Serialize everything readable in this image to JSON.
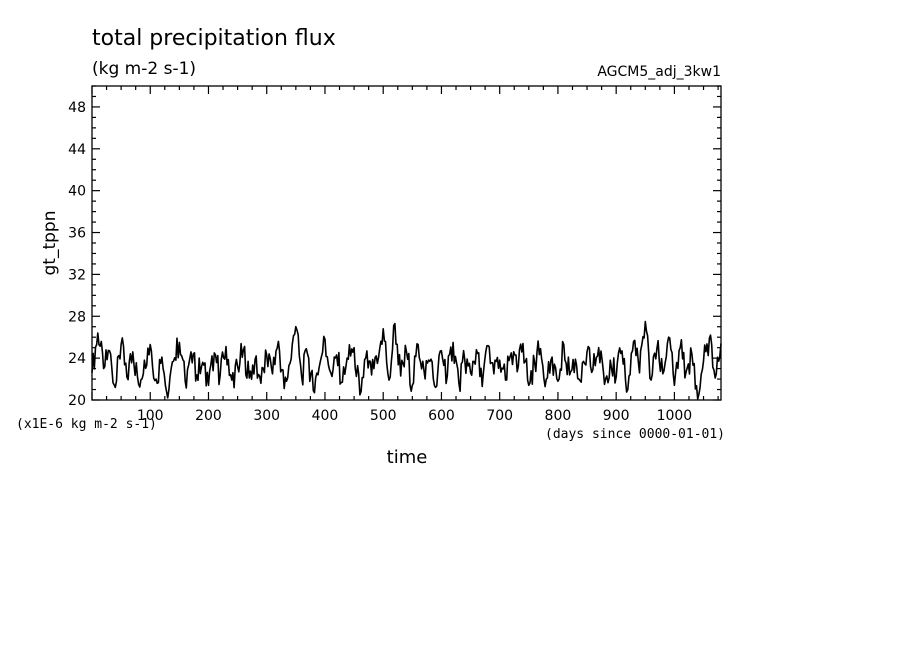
{
  "chart_data": {
    "type": "line",
    "title": "total precipitation flux",
    "subtitle": "(kg m-2 s-1)",
    "run_label": "AGCM5_adj_3kw1",
    "ylabel": "gt_tppn",
    "xlabel": "time",
    "y_unit_note": "(x1E-6 kg m-2 s-1)",
    "x_unit_note": "(days since 0000-01-01)",
    "xlim": [
      0,
      1080
    ],
    "ylim": [
      20,
      50
    ],
    "x_ticks": [
      100,
      200,
      300,
      400,
      500,
      600,
      700,
      800,
      900,
      1000
    ],
    "y_ticks": [
      20,
      24,
      28,
      32,
      36,
      40,
      44,
      48
    ],
    "grid": false,
    "line_color": "#000000",
    "series": [
      {
        "x": [
          0,
          10,
          20,
          30,
          40,
          50,
          60,
          70,
          80,
          90,
          100,
          110,
          120,
          130,
          140,
          150,
          160,
          170,
          180,
          190,
          200,
          210,
          220,
          230,
          240,
          250,
          260,
          270,
          280,
          290,
          300,
          310,
          320,
          330,
          340,
          350,
          360,
          370,
          380,
          390,
          400,
          410,
          420,
          430,
          440,
          450,
          460,
          470,
          480,
          490,
          500,
          510,
          520,
          530,
          540,
          550,
          560,
          570,
          580,
          590,
          600,
          610,
          620,
          630,
          640,
          650,
          660,
          670,
          680,
          690,
          700,
          710,
          720,
          730,
          740,
          750,
          760,
          770,
          780,
          790,
          800,
          810,
          820,
          830,
          840,
          850,
          860,
          870,
          880,
          890,
          900,
          910,
          920,
          930,
          940,
          950,
          960,
          970,
          980,
          990,
          1000,
          1010,
          1020,
          1030,
          1040,
          1050,
          1060,
          1070,
          1080
        ],
        "y": [
          22.6,
          26.4,
          23.0,
          24.7,
          21.2,
          25.3,
          22.2,
          24.6,
          21.5,
          23.8,
          25.3,
          22.0,
          24.1,
          20.2,
          23.7,
          25.5,
          21.8,
          24.6,
          22.4,
          23.6,
          21.4,
          24.5,
          22.3,
          25.1,
          21.9,
          23.2,
          24.8,
          22.1,
          23.9,
          21.6,
          24.3,
          22.5,
          25.6,
          21.1,
          23.5,
          27.0,
          22.2,
          24.4,
          20.9,
          23.1,
          25.8,
          22.6,
          24.3,
          21.7,
          23.9,
          25.0,
          20.5,
          24.0,
          22.4,
          23.5,
          26.8,
          21.9,
          27.3,
          22.3,
          24.6,
          21.4,
          25.3,
          22.8,
          23.7,
          21.2,
          24.7,
          22.3,
          25.5,
          21.6,
          23.9,
          22.6,
          24.8,
          21.3,
          25.2,
          22.5,
          23.8,
          21.9,
          24.5,
          22.7,
          25.4,
          21.4,
          23.6,
          24.9,
          22.0,
          24.1,
          21.8,
          25.3,
          22.4,
          23.9,
          21.7,
          24.6,
          22.9,
          25.0,
          21.5,
          23.8,
          22.2,
          24.7,
          21.0,
          25.6,
          22.6,
          27.5,
          21.9,
          24.9,
          22.5,
          26.0,
          21.4,
          25.0,
          22.7,
          24.4,
          20.1,
          23.7,
          25.9,
          22.1,
          25.4
        ]
      }
    ]
  }
}
